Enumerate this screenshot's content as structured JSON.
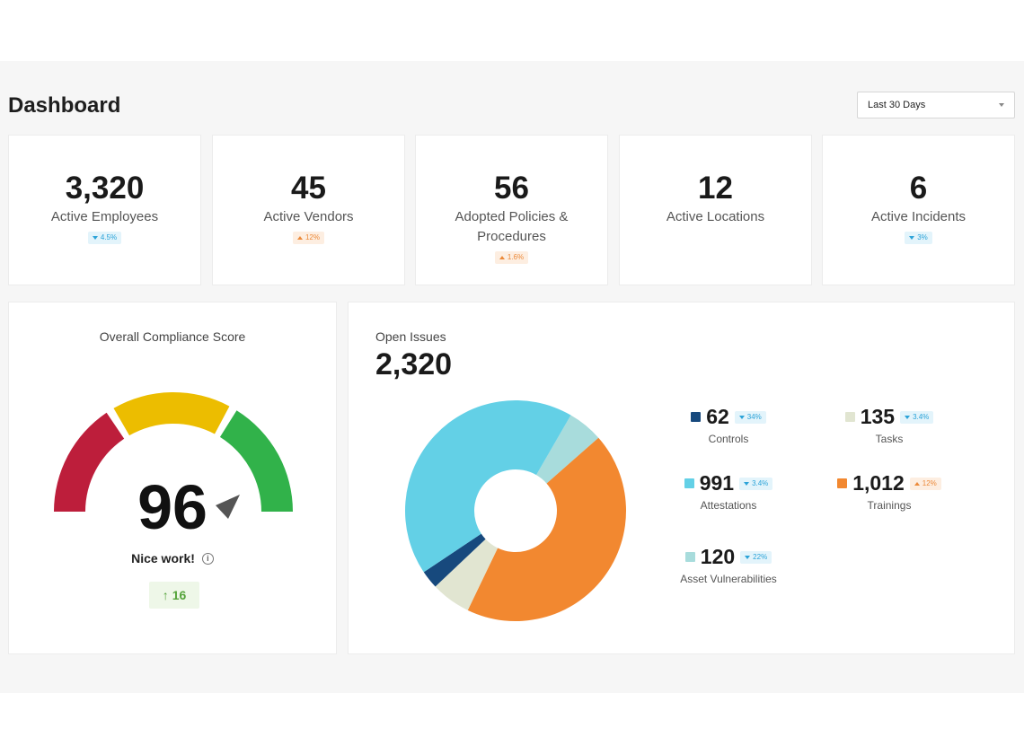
{
  "header": {
    "title": "Dashboard",
    "range_select": {
      "value": "Last 30 Days"
    }
  },
  "stats": [
    {
      "value": "3,320",
      "label": "Active Employees",
      "badge": {
        "text": "4.5%",
        "direction": "down"
      }
    },
    {
      "value": "45",
      "label": "Active Vendors",
      "badge": {
        "text": "12%",
        "direction": "up"
      }
    },
    {
      "value": "56",
      "label": "Adopted Policies & Procedures",
      "badge": {
        "text": "1.6%",
        "direction": "up"
      }
    },
    {
      "value": "12",
      "label": "Active Locations",
      "badge": null
    },
    {
      "value": "6",
      "label": "Active Incidents",
      "badge": {
        "text": "3%",
        "direction": "down"
      }
    }
  ],
  "compliance": {
    "title": "Overall Compliance Score",
    "score": "96",
    "message": "Nice work!",
    "delta": "16",
    "gauge_colors": [
      "#bd1e3b",
      "#ecbd00",
      "#31b24a"
    ],
    "needle_color": "#555555"
  },
  "issues": {
    "title": "Open Issues",
    "total": "2,320",
    "legend": [
      {
        "value": "62",
        "label": "Controls",
        "color": "#17497d",
        "badge": {
          "text": "34%",
          "direction": "down"
        }
      },
      {
        "value": "135",
        "label": "Tasks",
        "color": "#e1e5d1",
        "badge": {
          "text": "3.4%",
          "direction": "down"
        }
      },
      {
        "value": "991",
        "label": "Attestations",
        "color": "#63d0e6",
        "badge": {
          "text": "3.4%",
          "direction": "down"
        }
      },
      {
        "value": "1,012",
        "label": "Trainings",
        "color": "#f28830",
        "badge": {
          "text": "12%",
          "direction": "up"
        }
      },
      {
        "value": "120",
        "label": "Asset Vulnerabilities",
        "color": "#a8dcdc",
        "badge": {
          "text": "22%",
          "direction": "down"
        }
      }
    ]
  }
}
